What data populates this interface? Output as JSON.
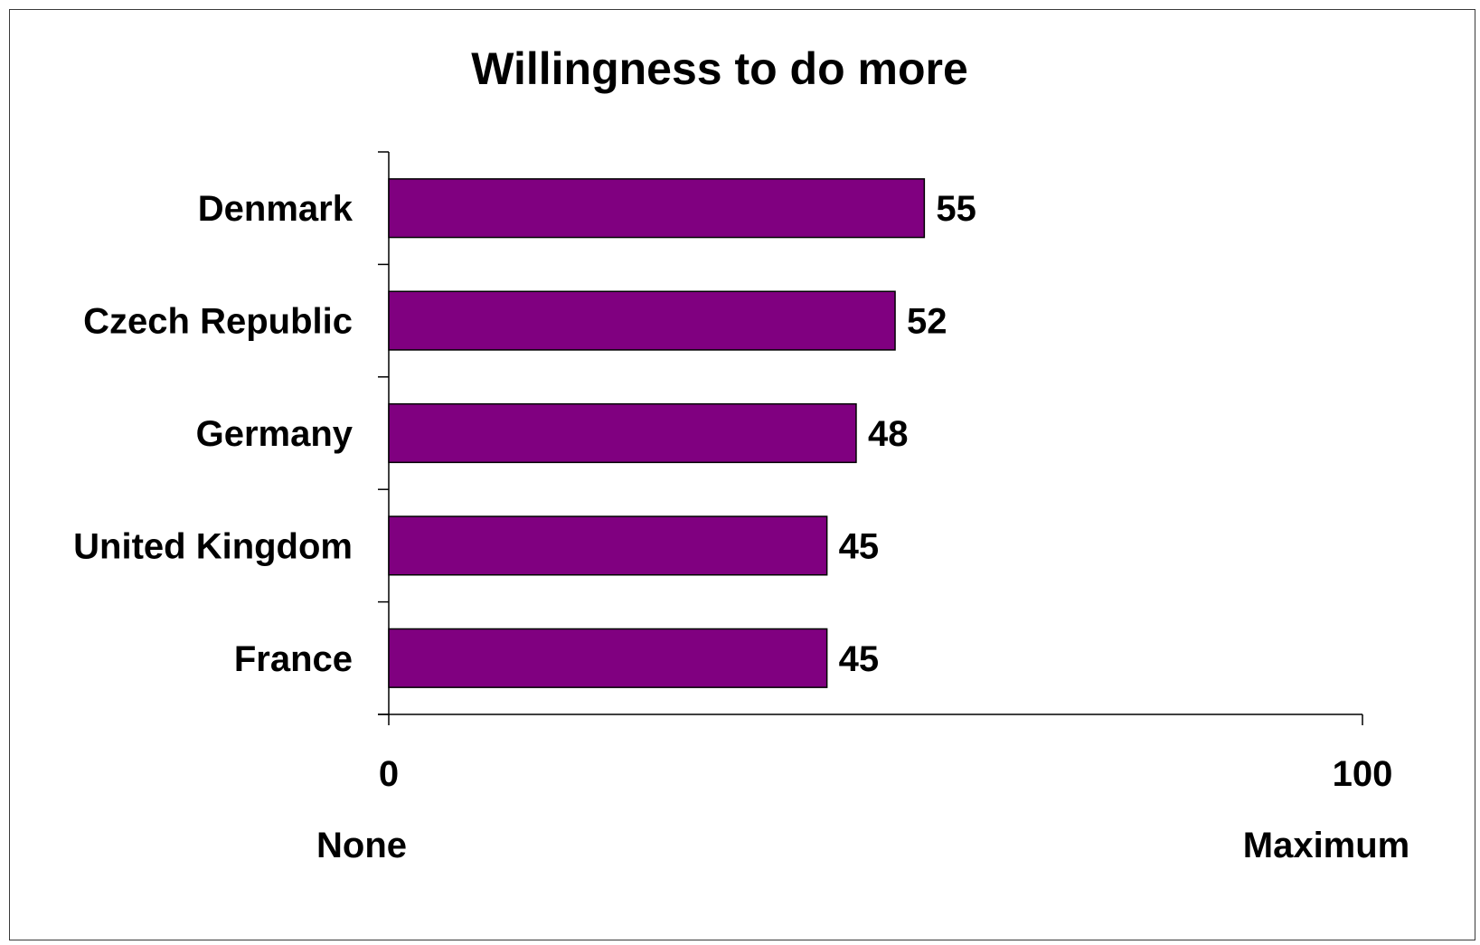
{
  "chart_data": {
    "type": "bar",
    "orientation": "horizontal",
    "title": "Willingness to do more",
    "categories": [
      "Denmark",
      "Czech Republic",
      "Germany",
      "United Kingdom",
      "France"
    ],
    "values": [
      55,
      52,
      48,
      45,
      45
    ],
    "xlim": [
      0,
      100
    ],
    "x_ticks": [
      0,
      100
    ],
    "x_end_labels": {
      "min": "None",
      "max": "Maximum"
    },
    "bar_color": "#800080",
    "grid": false,
    "legend": "none"
  }
}
